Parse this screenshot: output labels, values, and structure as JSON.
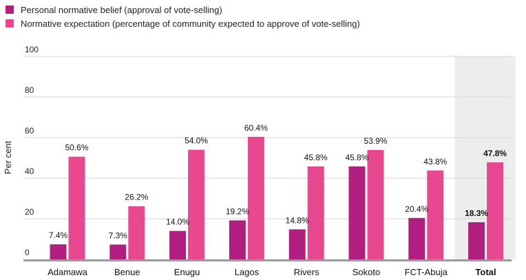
{
  "chart_data": {
    "type": "bar",
    "ylabel": "Per cent",
    "ylim": [
      0,
      100
    ],
    "yticks": [
      0,
      20,
      40,
      60,
      80,
      100
    ],
    "grid": true,
    "legend_placement": "top-left",
    "categories": [
      "Adamawa",
      "Benue",
      "Enugu",
      "Lagos",
      "Rivers",
      "Sokoto",
      "FCT-Abuja",
      "Total"
    ],
    "highlighted_category": "Total",
    "series": [
      {
        "name": "Personal normative belief (approval of vote-selling)",
        "color": "#b01f7f",
        "values": [
          7.4,
          7.3,
          14.0,
          19.2,
          14.8,
          45.8,
          20.4,
          18.3
        ],
        "labels": [
          "7.4%",
          "7.3%",
          "14.0%",
          "19.2%",
          "14.8%",
          "45.8%",
          "20.4%",
          "18.3%"
        ]
      },
      {
        "name": "Normative expectation (percentage of community expected to approve of vote-selling)",
        "color": "#e8488f",
        "values": [
          50.6,
          26.2,
          54.0,
          60.4,
          45.8,
          53.9,
          43.8,
          47.8
        ],
        "labels": [
          "50.6%",
          "26.2%",
          "54.0%",
          "60.4%",
          "45.8%",
          "53.9%",
          "43.8%",
          "47.8%"
        ]
      }
    ]
  },
  "colors": {
    "grid": "#d6d6d6",
    "axis": "#9a9a9a",
    "highlight_bg": "#ededee"
  }
}
